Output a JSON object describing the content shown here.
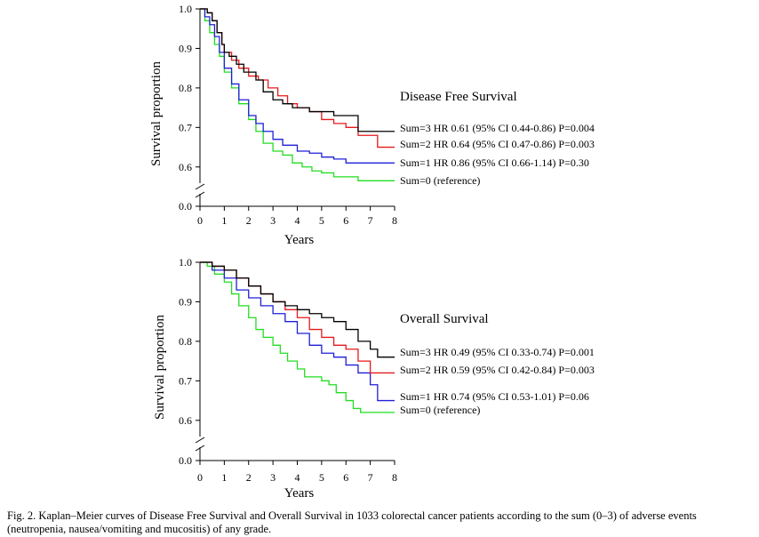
{
  "chart_data": [
    {
      "type": "line",
      "title": "Disease Free Survival",
      "xlabel": "Years",
      "ylabel": "Survival proportion",
      "xlim": [
        0,
        8
      ],
      "ylim": [
        0.55,
        1.0
      ],
      "xticks": [
        "0",
        "1",
        "2",
        "3",
        "4",
        "5",
        "6",
        "7",
        "8"
      ],
      "yticks": [
        "0.6",
        "0.7",
        "0.8",
        "0.9",
        "1.0"
      ],
      "ybreak_label": "0.0",
      "grid": false,
      "series": [
        {
          "name": "Sum=3",
          "label": "Sum=3  HR 0.61 (95% CI 0.44-0.86) P=0.004",
          "color": "#000000",
          "x": [
            0,
            0.3,
            0.5,
            0.7,
            0.9,
            1.0,
            1.2,
            1.5,
            1.8,
            2.0,
            2.3,
            2.6,
            3.0,
            3.4,
            3.8,
            4.5,
            5.5,
            6.5,
            8.0
          ],
          "y": [
            1.0,
            0.99,
            0.97,
            0.94,
            0.91,
            0.89,
            0.88,
            0.86,
            0.84,
            0.84,
            0.82,
            0.79,
            0.77,
            0.76,
            0.75,
            0.74,
            0.73,
            0.69,
            0.69
          ]
        },
        {
          "name": "Sum=2",
          "label": "Sum=2  HR 0.64 (95% CI 0.47-0.86) P=0.003",
          "color": "#e41a1c",
          "x": [
            0,
            0.3,
            0.5,
            0.7,
            0.9,
            1.0,
            1.3,
            1.6,
            2.0,
            2.4,
            2.8,
            3.2,
            3.6,
            4.0,
            4.5,
            5.0,
            5.5,
            6.0,
            6.5,
            7.3,
            8.0
          ],
          "y": [
            1.0,
            0.99,
            0.97,
            0.94,
            0.91,
            0.89,
            0.87,
            0.85,
            0.83,
            0.82,
            0.8,
            0.78,
            0.76,
            0.75,
            0.74,
            0.72,
            0.71,
            0.7,
            0.68,
            0.65,
            0.65
          ]
        },
        {
          "name": "Sum=1",
          "label": "Sum=1  HR 0.86 (95% CI 0.66-1.14) P=0.30",
          "color": "#1f1fd8",
          "x": [
            0,
            0.2,
            0.4,
            0.6,
            0.8,
            1.0,
            1.3,
            1.6,
            2.0,
            2.3,
            2.6,
            3.0,
            3.4,
            4.0,
            4.5,
            5.0,
            5.5,
            6.0,
            8.0
          ],
          "y": [
            1.0,
            0.98,
            0.96,
            0.93,
            0.89,
            0.85,
            0.81,
            0.77,
            0.73,
            0.71,
            0.69,
            0.67,
            0.655,
            0.64,
            0.635,
            0.625,
            0.62,
            0.61,
            0.61
          ]
        },
        {
          "name": "Sum=0",
          "label": "Sum=0 (reference)",
          "color": "#22dd22",
          "x": [
            0,
            0.2,
            0.4,
            0.6,
            0.8,
            1.0,
            1.3,
            1.6,
            2.0,
            2.3,
            2.6,
            3.0,
            3.4,
            3.8,
            4.2,
            4.6,
            5.0,
            5.5,
            6.0,
            6.5,
            8.0
          ],
          "y": [
            1.0,
            0.97,
            0.94,
            0.91,
            0.88,
            0.84,
            0.8,
            0.76,
            0.72,
            0.69,
            0.66,
            0.64,
            0.63,
            0.61,
            0.6,
            0.59,
            0.585,
            0.575,
            0.575,
            0.565,
            0.565
          ]
        }
      ]
    },
    {
      "type": "line",
      "title": "Overall Survival",
      "xlabel": "Years",
      "ylabel": "Survival proportion",
      "xlim": [
        0,
        8
      ],
      "ylim": [
        0.55,
        1.0
      ],
      "xticks": [
        "0",
        "1",
        "2",
        "3",
        "4",
        "5",
        "6",
        "7",
        "8"
      ],
      "yticks": [
        "0.6",
        "0.7",
        "0.8",
        "0.9",
        "1.0"
      ],
      "ybreak_label": "0.0",
      "grid": false,
      "series": [
        {
          "name": "Sum=3",
          "label": "Sum=3  HR 0.49 (95% CI 0.33-0.74) P=0.001",
          "color": "#000000",
          "x": [
            0,
            0.5,
            1.0,
            1.5,
            2.0,
            2.5,
            3.0,
            3.5,
            4.0,
            4.5,
            5.0,
            5.5,
            6.0,
            6.5,
            7.0,
            7.3,
            8.0
          ],
          "y": [
            1.0,
            0.99,
            0.98,
            0.96,
            0.94,
            0.92,
            0.9,
            0.89,
            0.88,
            0.87,
            0.86,
            0.85,
            0.83,
            0.8,
            0.78,
            0.76,
            0.76
          ]
        },
        {
          "name": "Sum=2",
          "label": "Sum=2  HR 0.59 (95% CI 0.42-0.84) P=0.003",
          "color": "#e41a1c",
          "x": [
            0,
            0.5,
            1.0,
            1.5,
            2.0,
            2.5,
            3.0,
            3.5,
            4.0,
            4.5,
            5.0,
            5.5,
            6.0,
            6.5,
            7.0,
            8.0
          ],
          "y": [
            1.0,
            0.99,
            0.98,
            0.96,
            0.94,
            0.92,
            0.9,
            0.88,
            0.86,
            0.83,
            0.81,
            0.79,
            0.78,
            0.75,
            0.72,
            0.72
          ]
        },
        {
          "name": "Sum=1",
          "label": "Sum=1  HR 0.74 (95% CI 0.53-1.01) P=0.06",
          "color": "#1f1fd8",
          "x": [
            0,
            0.5,
            1.0,
            1.5,
            2.0,
            2.5,
            3.0,
            3.5,
            4.0,
            4.5,
            5.0,
            5.5,
            6.0,
            6.5,
            7.0,
            7.3,
            8.0
          ],
          "y": [
            1.0,
            0.98,
            0.96,
            0.93,
            0.91,
            0.89,
            0.87,
            0.85,
            0.82,
            0.79,
            0.77,
            0.76,
            0.74,
            0.72,
            0.69,
            0.65,
            0.65
          ]
        },
        {
          "name": "Sum=0",
          "label": "Sum=0 (reference)",
          "color": "#22dd22",
          "x": [
            0,
            0.3,
            0.6,
            1.0,
            1.3,
            1.6,
            2.0,
            2.3,
            2.6,
            3.0,
            3.3,
            3.6,
            4.0,
            4.3,
            4.7,
            5.0,
            5.3,
            5.6,
            6.0,
            6.3,
            6.6,
            7.0,
            8.0
          ],
          "y": [
            1.0,
            0.99,
            0.97,
            0.95,
            0.92,
            0.89,
            0.86,
            0.83,
            0.81,
            0.79,
            0.77,
            0.75,
            0.73,
            0.71,
            0.71,
            0.7,
            0.69,
            0.67,
            0.65,
            0.63,
            0.62,
            0.62,
            0.62
          ]
        }
      ]
    }
  ],
  "caption": "Fig. 2.  Kaplan–Meier curves of Disease Free Survival and Overall Survival in 1033 colorectal cancer patients according to the sum (0–3) of adverse events (neutropenia, nausea/vomiting and mucositis) of any grade."
}
